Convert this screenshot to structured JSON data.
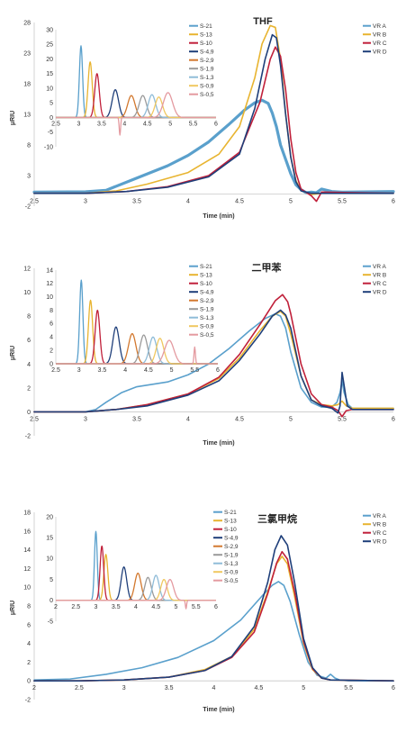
{
  "chart_data": [
    {
      "type": "line",
      "title": "THF",
      "xlabel": "Time (min)",
      "ylabel": "μRIU",
      "xlim": [
        2.5,
        6
      ],
      "ylim": [
        -2,
        28
      ],
      "xticks": [
        "2.5",
        "3",
        "3.5",
        "4",
        "4.5",
        "5",
        "5.5",
        "6"
      ],
      "yticks": [
        "-2",
        "3",
        "8",
        "13",
        "18",
        "23",
        "28"
      ],
      "legend": "top-right",
      "series": [
        {
          "name": "VR A",
          "color": "#5aa0cc",
          "width": 3.2,
          "x": [
            2.5,
            3.0,
            3.2,
            3.5,
            3.8,
            4.0,
            4.2,
            4.4,
            4.55,
            4.65,
            4.72,
            4.78,
            4.82,
            4.86,
            4.9,
            5.0,
            5.05,
            5.1,
            5.15,
            5.2,
            5.25,
            5.3,
            5.4,
            5.5,
            6.0
          ],
          "y": [
            0.3,
            0.35,
            0.6,
            2.6,
            4.6,
            6.3,
            8.5,
            11.4,
            13.7,
            14.9,
            15.3,
            14.8,
            13.2,
            11.0,
            8.0,
            3.3,
            1.5,
            0.7,
            0.2,
            0.3,
            0.2,
            0.8,
            0.4,
            0.3,
            0.4
          ]
        },
        {
          "name": "VR B",
          "color": "#e8b430",
          "width": 1.6,
          "x": [
            2.5,
            3.0,
            3.3,
            3.6,
            4.0,
            4.3,
            4.5,
            4.65,
            4.72,
            4.8,
            4.85,
            4.9,
            4.95,
            5.0,
            5.05,
            5.1,
            5.2,
            5.3,
            6.0
          ],
          "y": [
            0.1,
            0.1,
            0.5,
            1.6,
            3.5,
            6.5,
            11.0,
            19.0,
            24.5,
            27.5,
            27.2,
            22.0,
            13.0,
            6.0,
            2.2,
            0.6,
            -0.1,
            0.1,
            0.1
          ]
        },
        {
          "name": "VR C",
          "color": "#c0203a",
          "width": 1.6,
          "x": [
            2.5,
            3.0,
            3.4,
            3.8,
            4.2,
            4.5,
            4.7,
            4.8,
            4.85,
            4.9,
            4.95,
            5.0,
            5.05,
            5.1,
            5.2,
            5.25,
            5.3,
            6.0
          ],
          "y": [
            0.1,
            0.1,
            0.4,
            1.2,
            3.0,
            6.8,
            15.0,
            22.0,
            24.0,
            22.5,
            17.0,
            9.0,
            3.5,
            0.8,
            -0.3,
            -1.2,
            0.3,
            0.1
          ]
        },
        {
          "name": "VR D",
          "color": "#1f3f7a",
          "width": 1.6,
          "x": [
            2.5,
            3.0,
            3.4,
            3.8,
            4.2,
            4.5,
            4.65,
            4.75,
            4.82,
            4.86,
            4.9,
            4.95,
            5.0,
            5.05,
            5.1,
            5.2,
            6.0
          ],
          "y": [
            0.1,
            0.1,
            0.4,
            1.1,
            2.8,
            6.5,
            14.0,
            22.0,
            26.0,
            25.5,
            21.0,
            13.0,
            6.0,
            2.0,
            0.5,
            0.1,
            0.1
          ]
        }
      ],
      "inset": {
        "xlim": [
          2.5,
          6
        ],
        "ylim": [
          -10,
          30
        ],
        "xticks": [
          "2.5",
          "3",
          "3.5",
          "4",
          "4.5",
          "5",
          "5.5",
          "6"
        ],
        "yticks": [
          "-10",
          "-5",
          "0",
          "5",
          "10",
          "15",
          "20",
          "25",
          "30"
        ],
        "series": [
          {
            "name": "S-21",
            "color": "#5aa0cc",
            "peak_x": 3.05,
            "peak_y": 24.5,
            "sigma": 0.035
          },
          {
            "name": "S-13",
            "color": "#e8b430",
            "peak_x": 3.25,
            "peak_y": 19.0,
            "sigma": 0.045
          },
          {
            "name": "S-10",
            "color": "#c0203a",
            "peak_x": 3.4,
            "peak_y": 15.0,
            "sigma": 0.05
          },
          {
            "name": "S-4,9",
            "color": "#1f3f7a",
            "peak_x": 3.8,
            "peak_y": 9.5,
            "sigma": 0.07
          },
          {
            "name": "S-2,9",
            "color": "#d2782e",
            "peak_x": 4.15,
            "peak_y": 7.5,
            "sigma": 0.08
          },
          {
            "name": "S-1,9",
            "color": "#9a9a9a",
            "peak_x": 4.4,
            "peak_y": 7.5,
            "sigma": 0.08
          },
          {
            "name": "S-1,3",
            "color": "#8fbcd8",
            "peak_x": 4.6,
            "peak_y": 7.8,
            "sigma": 0.08
          },
          {
            "name": "S-0,9",
            "color": "#f0c860",
            "peak_x": 4.75,
            "peak_y": 7.0,
            "sigma": 0.08
          },
          {
            "name": "S-0,5",
            "color": "#e49aa0",
            "peak_x": 4.95,
            "peak_y": 8.5,
            "sigma": 0.1,
            "dip_x": 3.9,
            "dip_y": -6.0
          }
        ]
      }
    },
    {
      "type": "line",
      "title": "二甲苯",
      "xlabel": "Time (min)",
      "ylabel": "μRIU",
      "xlim": [
        2.5,
        6
      ],
      "ylim": [
        -2,
        12
      ],
      "xticks": [
        "2.5",
        "3",
        "3.5",
        "4",
        "4.5",
        "5",
        "5.5",
        "6"
      ],
      "yticks": [
        "-2",
        "0",
        "2",
        "4",
        "6",
        "8",
        "10",
        "12"
      ],
      "legend": "top-right",
      "series": [
        {
          "name": "VR A",
          "color": "#5aa0cc",
          "width": 1.6,
          "x": [
            2.5,
            3.0,
            3.1,
            3.2,
            3.35,
            3.5,
            3.8,
            4.0,
            4.2,
            4.4,
            4.6,
            4.75,
            4.85,
            4.9,
            4.95,
            5.0,
            5.1,
            5.2,
            5.3,
            5.4,
            5.45,
            5.48,
            5.5,
            5.52,
            5.56,
            5.6,
            6.0
          ],
          "y": [
            0.0,
            0.0,
            0.2,
            0.8,
            1.6,
            2.1,
            2.5,
            3.1,
            4.0,
            5.3,
            6.8,
            7.8,
            8.2,
            8.0,
            7.0,
            5.0,
            2.0,
            0.8,
            0.4,
            0.4,
            0.8,
            1.6,
            2.6,
            1.6,
            0.6,
            0.3,
            0.3
          ]
        },
        {
          "name": "VR B",
          "color": "#e8b430",
          "width": 1.6,
          "x": [
            2.5,
            3.0,
            3.3,
            3.6,
            4.0,
            4.3,
            4.5,
            4.7,
            4.82,
            4.9,
            4.95,
            5.0,
            5.1,
            5.2,
            5.3,
            5.4,
            5.46,
            5.5,
            5.54,
            5.6,
            6.0
          ],
          "y": [
            0.0,
            0.0,
            0.2,
            0.6,
            1.5,
            2.8,
            4.5,
            6.8,
            8.0,
            8.4,
            8.0,
            6.5,
            3.0,
            1.0,
            0.6,
            0.5,
            0.6,
            0.9,
            0.5,
            0.3,
            0.3
          ]
        },
        {
          "name": "VR C",
          "color": "#c0203a",
          "width": 1.6,
          "x": [
            2.5,
            3.0,
            3.3,
            3.6,
            4.0,
            4.3,
            4.5,
            4.7,
            4.85,
            4.92,
            4.97,
            5.0,
            5.1,
            5.2,
            5.3,
            5.4,
            5.46,
            5.5,
            5.54,
            5.6,
            6.0
          ],
          "y": [
            0.0,
            0.0,
            0.2,
            0.6,
            1.5,
            2.9,
            4.8,
            7.3,
            9.3,
            9.8,
            9.2,
            8.2,
            4.0,
            1.5,
            0.6,
            0.4,
            0.1,
            -0.4,
            0.1,
            0.2,
            0.2
          ]
        },
        {
          "name": "VR D",
          "color": "#1f3f7a",
          "width": 1.6,
          "x": [
            2.5,
            3.0,
            3.3,
            3.6,
            4.0,
            4.3,
            4.5,
            4.7,
            4.82,
            4.9,
            4.95,
            5.0,
            5.1,
            5.2,
            5.3,
            5.4,
            5.46,
            5.48,
            5.5,
            5.52,
            5.55,
            5.6,
            6.0
          ],
          "y": [
            0.0,
            0.0,
            0.2,
            0.5,
            1.4,
            2.6,
            4.3,
            6.5,
            8.0,
            8.5,
            8.1,
            7.0,
            3.0,
            1.0,
            0.5,
            0.3,
            -0.1,
            0.5,
            3.3,
            2.2,
            0.5,
            0.2,
            0.2
          ]
        }
      ],
      "inset": {
        "xlim": [
          2.5,
          6
        ],
        "ylim": [
          0,
          14
        ],
        "xticks": [
          "2.5",
          "3",
          "3.5",
          "4",
          "4.5",
          "5",
          "5.5",
          "6"
        ],
        "yticks": [
          "0",
          "2",
          "4",
          "6",
          "8",
          "10",
          "12",
          "14"
        ],
        "series": [
          {
            "name": "S-21",
            "color": "#5aa0cc",
            "peak_x": 3.05,
            "peak_y": 12.5,
            "sigma": 0.035
          },
          {
            "name": "S-13",
            "color": "#e8b430",
            "peak_x": 3.25,
            "peak_y": 9.5,
            "sigma": 0.045
          },
          {
            "name": "S-10",
            "color": "#c0203a",
            "peak_x": 3.4,
            "peak_y": 8.0,
            "sigma": 0.05
          },
          {
            "name": "S-4,9",
            "color": "#1f3f7a",
            "peak_x": 3.8,
            "peak_y": 5.5,
            "sigma": 0.07
          },
          {
            "name": "S-2,9",
            "color": "#d2782e",
            "peak_x": 4.15,
            "peak_y": 4.5,
            "sigma": 0.08
          },
          {
            "name": "S-1,9",
            "color": "#9a9a9a",
            "peak_x": 4.4,
            "peak_y": 4.3,
            "sigma": 0.08
          },
          {
            "name": "S-1,3",
            "color": "#8fbcd8",
            "peak_x": 4.6,
            "peak_y": 4.0,
            "sigma": 0.08
          },
          {
            "name": "S-0,9",
            "color": "#f0c860",
            "peak_x": 4.75,
            "peak_y": 3.8,
            "sigma": 0.08
          },
          {
            "name": "S-0,5",
            "color": "#e49aa0",
            "peak_x": 4.95,
            "peak_y": 3.5,
            "sigma": 0.1,
            "spike_x": 5.5,
            "spike_y": 2.5
          }
        ]
      }
    },
    {
      "type": "line",
      "title": "三氯甲烷",
      "xlabel": "Time (min)",
      "ylabel": "μRIU",
      "xlim": [
        2,
        6
      ],
      "ylim": [
        -2,
        18
      ],
      "xticks": [
        "2",
        "2.5",
        "3",
        "3.5",
        "4",
        "4.5",
        "5",
        "5.5",
        "6"
      ],
      "yticks": [
        "-2",
        "0",
        "2",
        "4",
        "6",
        "8",
        "10",
        "12",
        "14",
        "16",
        "18"
      ],
      "legend": "top-right",
      "series": [
        {
          "name": "VR A",
          "color": "#5aa0cc",
          "width": 1.6,
          "x": [
            2.0,
            2.4,
            2.8,
            3.2,
            3.6,
            4.0,
            4.3,
            4.55,
            4.65,
            4.72,
            4.78,
            4.85,
            4.95,
            5.05,
            5.15,
            5.25,
            5.3,
            5.35,
            5.4,
            5.5,
            6.0
          ],
          "y": [
            0.1,
            0.2,
            0.7,
            1.4,
            2.5,
            4.3,
            6.5,
            9.2,
            10.2,
            10.6,
            10.2,
            8.5,
            5.0,
            2.0,
            0.6,
            0.3,
            0.7,
            0.3,
            0.1,
            0.0,
            0.0
          ]
        },
        {
          "name": "VR B",
          "color": "#e8b430",
          "width": 1.6,
          "x": [
            2.0,
            2.5,
            3.0,
            3.5,
            3.9,
            4.2,
            4.45,
            4.6,
            4.7,
            4.76,
            4.82,
            4.9,
            5.0,
            5.1,
            5.2,
            5.3,
            6.0
          ],
          "y": [
            0.0,
            0.0,
            0.1,
            0.4,
            1.2,
            2.6,
            5.5,
            9.5,
            12.5,
            13.3,
            12.5,
            9.0,
            4.0,
            1.2,
            0.3,
            0.1,
            0.0
          ]
        },
        {
          "name": "VR C",
          "color": "#c0203a",
          "width": 1.6,
          "x": [
            2.0,
            2.5,
            3.0,
            3.5,
            3.9,
            4.2,
            4.45,
            4.6,
            4.7,
            4.76,
            4.82,
            4.9,
            5.0,
            5.1,
            5.2,
            5.3,
            6.0
          ],
          "y": [
            0.0,
            0.0,
            0.1,
            0.4,
            1.1,
            2.5,
            5.2,
            9.3,
            12.6,
            13.8,
            13.0,
            9.5,
            4.2,
            1.3,
            0.3,
            0.1,
            0.0
          ]
        },
        {
          "name": "VR D",
          "color": "#1f3f7a",
          "width": 1.6,
          "x": [
            2.0,
            2.5,
            3.0,
            3.5,
            3.9,
            4.2,
            4.45,
            4.6,
            4.68,
            4.75,
            4.82,
            4.9,
            5.0,
            5.1,
            5.2,
            5.3,
            6.0
          ],
          "y": [
            0.0,
            0.0,
            0.1,
            0.4,
            1.1,
            2.6,
            5.8,
            10.5,
            14.0,
            15.5,
            14.5,
            10.5,
            4.5,
            1.4,
            0.3,
            0.1,
            0.0
          ]
        }
      ],
      "inset": {
        "xlim": [
          2,
          6
        ],
        "ylim": [
          -5,
          20
        ],
        "xticks": [
          "2",
          "2.5",
          "3",
          "3.5",
          "4",
          "4.5",
          "5",
          "5.5",
          "6"
        ],
        "yticks": [
          "-5",
          "0",
          "5",
          "10",
          "15",
          "20"
        ],
        "series": [
          {
            "name": "S-21",
            "color": "#5aa0cc",
            "peak_x": 3.0,
            "peak_y": 16.5,
            "sigma": 0.035
          },
          {
            "name": "S-13",
            "color": "#e8b430",
            "peak_x": 3.25,
            "peak_y": 11.0,
            "sigma": 0.05
          },
          {
            "name": "S-10",
            "color": "#c0203a",
            "peak_x": 3.15,
            "peak_y": 13.0,
            "sigma": 0.045
          },
          {
            "name": "S-4,9",
            "color": "#1f3f7a",
            "peak_x": 3.7,
            "peak_y": 8.0,
            "sigma": 0.07
          },
          {
            "name": "S-2,9",
            "color": "#d2782e",
            "peak_x": 4.05,
            "peak_y": 6.5,
            "sigma": 0.08
          },
          {
            "name": "S-1,9",
            "color": "#9a9a9a",
            "peak_x": 4.3,
            "peak_y": 5.5,
            "sigma": 0.08
          },
          {
            "name": "S-1,3",
            "color": "#8fbcd8",
            "peak_x": 4.5,
            "peak_y": 6.0,
            "sigma": 0.08
          },
          {
            "name": "S-0,9",
            "color": "#f0c860",
            "peak_x": 4.7,
            "peak_y": 5.0,
            "sigma": 0.08
          },
          {
            "name": "S-0,5",
            "color": "#e49aa0",
            "peak_x": 4.85,
            "peak_y": 5.0,
            "sigma": 0.09,
            "dip_x": 5.25,
            "dip_y": -2.0
          }
        ]
      }
    }
  ]
}
